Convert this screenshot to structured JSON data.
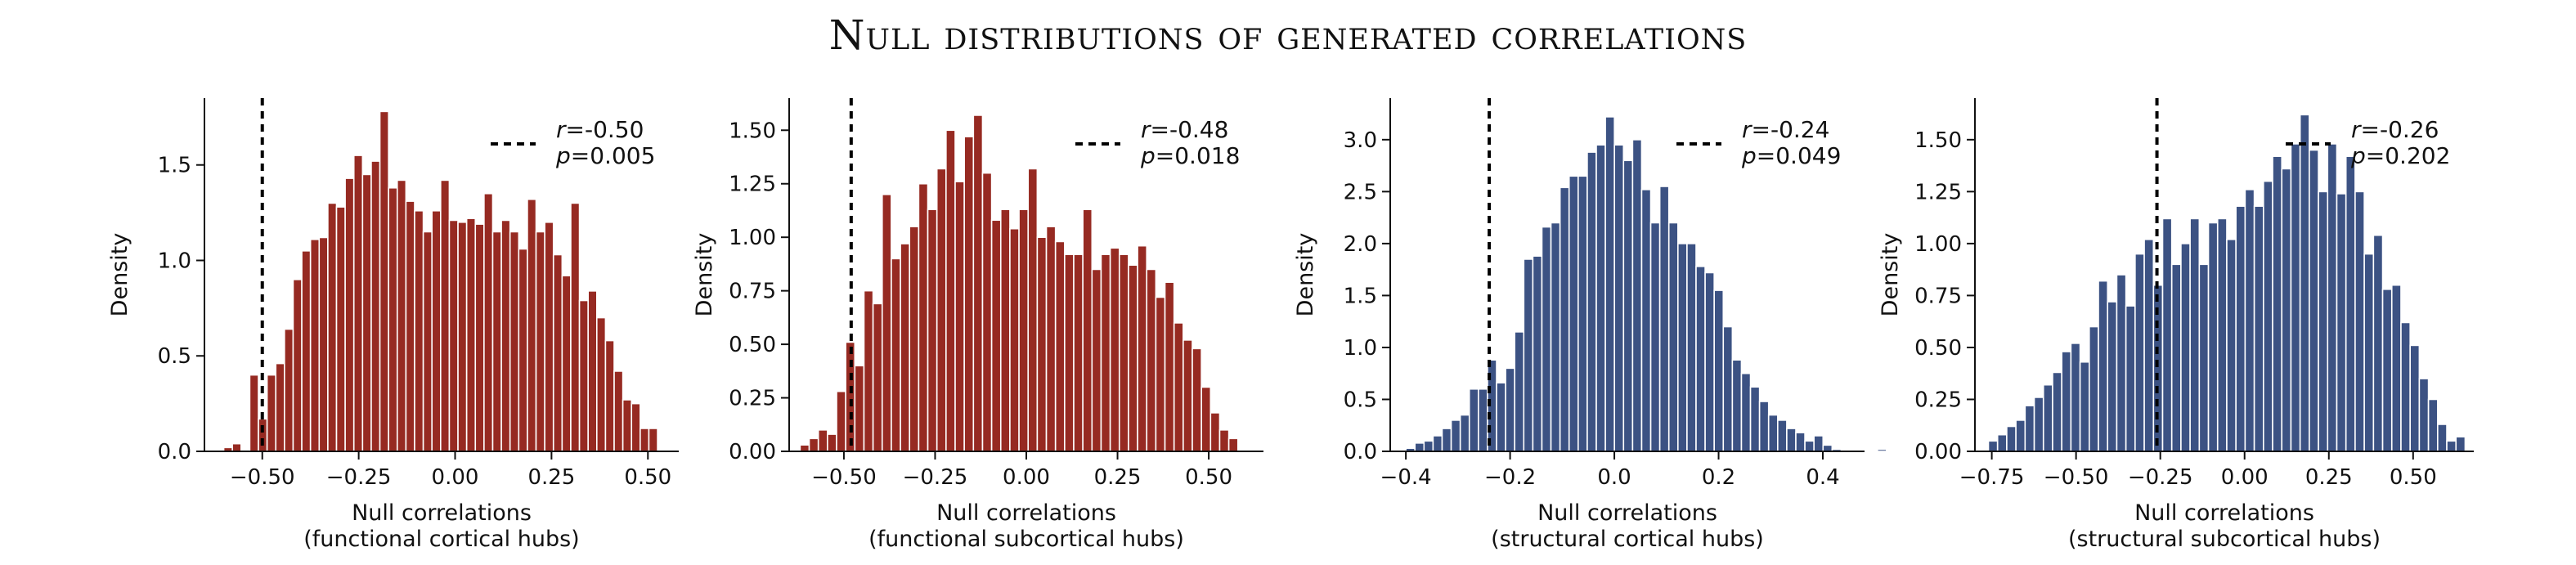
{
  "title": "Null distributions of generated correlations",
  "colors": {
    "red": "#962a22",
    "blue": "#3c5283",
    "axis": "#111111",
    "line": "#000000"
  },
  "chart_data": [
    {
      "type": "bar",
      "subtype": "histogram",
      "color_key": "red",
      "xlabel": "Null correlations",
      "xlabel_sub": "(functional cortical hubs)",
      "ylabel": "Density",
      "xlim": [
        -0.65,
        0.58
      ],
      "ylim": [
        0,
        1.85
      ],
      "xticks": [
        -0.5,
        -0.25,
        0.0,
        0.25,
        0.5
      ],
      "xtick_labels": [
        "−0.50",
        "−0.25",
        "0.00",
        "0.25",
        "0.50"
      ],
      "yticks": [
        0.0,
        0.5,
        1.0,
        1.5
      ],
      "ytick_labels": [
        "0.0",
        "0.5",
        "1.0",
        "1.5"
      ],
      "bin_start": -0.6,
      "bin_width": 0.0225,
      "values": [
        0.02,
        0.04,
        0.0,
        0.4,
        0.17,
        0.4,
        0.46,
        0.64,
        0.9,
        1.05,
        1.11,
        1.12,
        1.3,
        1.28,
        1.43,
        1.55,
        1.45,
        1.52,
        1.78,
        1.38,
        1.42,
        1.31,
        1.26,
        1.15,
        1.26,
        1.42,
        1.21,
        1.2,
        1.22,
        1.19,
        1.35,
        1.15,
        1.21,
        1.15,
        1.06,
        1.32,
        1.15,
        1.2,
        1.03,
        0.92,
        1.3,
        0.79,
        0.84,
        0.7,
        0.58,
        0.42,
        0.27,
        0.25,
        0.12,
        0.12
      ],
      "observed_r": -0.5,
      "legend": {
        "r": "-0.50",
        "p": "0.005"
      }
    },
    {
      "type": "bar",
      "subtype": "histogram",
      "color_key": "red",
      "xlabel": "Null correlations",
      "xlabel_sub": "(functional subcortical hubs)",
      "ylabel": "Density",
      "xlim": [
        -0.65,
        0.65
      ],
      "ylim": [
        0,
        1.65
      ],
      "xticks": [
        -0.5,
        -0.25,
        0.0,
        0.25,
        0.5
      ],
      "xtick_labels": [
        "−0.50",
        "−0.25",
        "0.00",
        "0.25",
        "0.50"
      ],
      "yticks": [
        0.0,
        0.25,
        0.5,
        0.75,
        1.0,
        1.25,
        1.5
      ],
      "ytick_labels": [
        "0.00",
        "0.25",
        "0.50",
        "0.75",
        "1.00",
        "1.25",
        "1.50"
      ],
      "bin_start": -0.62,
      "bin_width": 0.025,
      "values": [
        0.03,
        0.06,
        0.1,
        0.08,
        0.28,
        0.51,
        0.4,
        0.75,
        0.69,
        1.2,
        0.9,
        0.97,
        1.05,
        1.25,
        1.13,
        1.32,
        1.5,
        1.26,
        1.47,
        1.57,
        1.3,
        1.08,
        1.13,
        1.04,
        1.13,
        1.32,
        1.0,
        1.05,
        0.98,
        0.92,
        0.92,
        1.13,
        0.85,
        0.92,
        0.95,
        0.92,
        0.87,
        0.96,
        0.85,
        0.72,
        0.79,
        0.6,
        0.52,
        0.48,
        0.3,
        0.18,
        0.1,
        0.06
      ],
      "observed_r": -0.48,
      "legend": {
        "r": "-0.48",
        "p": "0.018"
      }
    },
    {
      "type": "bar",
      "subtype": "histogram",
      "color_key": "blue",
      "xlabel": "Null correlations",
      "xlabel_sub": "(structural cortical hubs)",
      "ylabel": "Density",
      "xlim": [
        -0.43,
        0.48
      ],
      "ylim": [
        0,
        3.4
      ],
      "xticks": [
        -0.4,
        -0.2,
        0.0,
        0.2,
        0.4
      ],
      "xtick_labels": [
        "−0.4",
        "−0.2",
        "0.0",
        "0.2",
        "0.4"
      ],
      "yticks": [
        0.0,
        0.5,
        1.0,
        1.5,
        2.0,
        2.5,
        3.0
      ],
      "ytick_labels": [
        "0.0",
        "0.5",
        "1.0",
        "1.5",
        "2.0",
        "2.5",
        "3.0"
      ],
      "bin_start": -0.4,
      "bin_width": 0.0174,
      "values": [
        0.03,
        0.08,
        0.1,
        0.15,
        0.22,
        0.3,
        0.35,
        0.6,
        0.6,
        0.88,
        0.66,
        0.8,
        1.15,
        1.85,
        1.88,
        2.16,
        2.2,
        2.54,
        2.65,
        2.65,
        2.88,
        2.95,
        3.22,
        2.95,
        2.8,
        3.0,
        2.52,
        2.2,
        2.55,
        2.2,
        2.0,
        2.0,
        1.78,
        1.72,
        1.55,
        1.2,
        0.88,
        0.75,
        0.62,
        0.48,
        0.35,
        0.3,
        0.22,
        0.18,
        0.1,
        0.15,
        0.06,
        0.02,
        0.0,
        0.0,
        0.0,
        0.0,
        0.02
      ],
      "observed_r": -0.24,
      "legend": {
        "r": "-0.24",
        "p": "0.049"
      }
    },
    {
      "type": "bar",
      "subtype": "histogram",
      "color_key": "blue",
      "xlabel": "Null correlations",
      "xlabel_sub": "(structural subcortical hubs)",
      "ylabel": "Density",
      "xlim": [
        -0.8,
        0.68
      ],
      "ylim": [
        0,
        1.7
      ],
      "xticks": [
        -0.75,
        -0.5,
        -0.25,
        0.0,
        0.25,
        0.5
      ],
      "xtick_labels": [
        "−0.75",
        "−0.50",
        "−0.25",
        "0.00",
        "0.25",
        "0.50"
      ],
      "yticks": [
        0.0,
        0.25,
        0.5,
        0.75,
        1.0,
        1.25,
        1.5
      ],
      "ytick_labels": [
        "0.00",
        "0.25",
        "0.50",
        "0.75",
        "1.00",
        "1.25",
        "1.50"
      ],
      "bin_start": -0.76,
      "bin_width": 0.0272,
      "values": [
        0.05,
        0.08,
        0.12,
        0.15,
        0.22,
        0.26,
        0.32,
        0.38,
        0.48,
        0.52,
        0.43,
        0.6,
        0.82,
        0.72,
        0.85,
        0.7,
        0.95,
        1.02,
        0.8,
        1.12,
        0.9,
        1.0,
        1.12,
        0.9,
        1.1,
        1.12,
        1.02,
        1.18,
        1.26,
        1.18,
        1.3,
        1.42,
        1.36,
        1.48,
        1.62,
        1.45,
        1.25,
        1.48,
        1.24,
        1.42,
        1.25,
        0.95,
        1.04,
        0.78,
        0.8,
        0.62,
        0.51,
        0.35,
        0.25,
        0.13,
        0.05,
        0.07
      ],
      "observed_r": -0.26,
      "legend": {
        "r": "-0.26",
        "p": "0.202"
      }
    }
  ]
}
